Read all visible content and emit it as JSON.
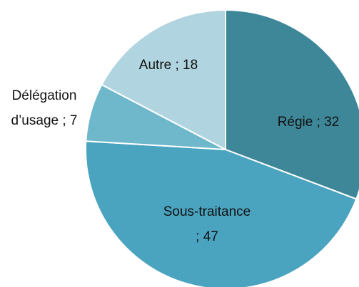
{
  "chart_data": {
    "type": "pie",
    "values": [
      32,
      47,
      7,
      18
    ],
    "value_labels": [
      [
        "Régie ; 32"
      ],
      [
        "Sous-traitance",
        "; 47"
      ],
      [
        "Délégation",
        "d’usage ; 7"
      ],
      [
        "Autre ; 18"
      ]
    ],
    "colors": [
      "#3d8799",
      "#4aa3bf",
      "#6fb8cc",
      "#b0d4e0"
    ],
    "start_angle": 0,
    "direction": "clockwise"
  }
}
